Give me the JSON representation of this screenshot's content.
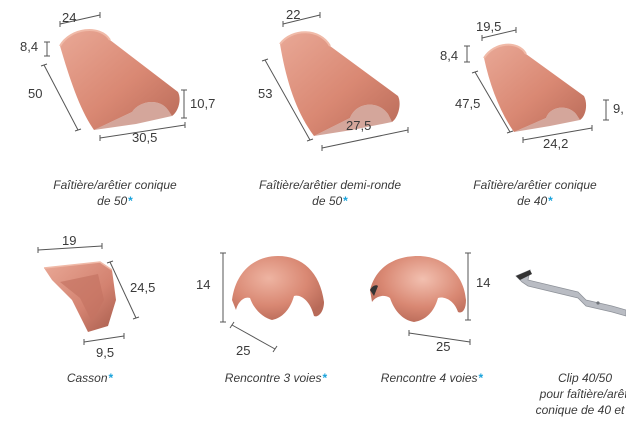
{
  "products": [
    {
      "caption_line1": "Faîtière/arêtier conique",
      "caption_line2": "de 50",
      "asterisk": "*",
      "dims": {
        "top": "24",
        "left_small": "8,4",
        "length": "50",
        "height": "10,7",
        "bottom": "30,5"
      }
    },
    {
      "caption_line1": "Faîtière/arêtier demi-ronde",
      "caption_line2": "de 50",
      "asterisk": "*",
      "dims": {
        "top": "22",
        "length": "53",
        "bottom": "27,5"
      }
    },
    {
      "caption_line1": "Faîtière/arêtier conique",
      "caption_line2": "de 40",
      "asterisk": "*",
      "dims": {
        "top": "19,5",
        "left_small": "8,4",
        "length": "47,5",
        "height": "9,",
        "bottom": "24,2"
      }
    },
    {
      "caption_line1": "Casson",
      "asterisk": "*",
      "dims": {
        "top": "19",
        "right": "24,5",
        "bottom": "9,5"
      }
    },
    {
      "caption_line1": "Rencontre 3 voies",
      "asterisk": "*",
      "dims": {
        "height": "14",
        "diameter": "25"
      }
    },
    {
      "caption_line1": "Rencontre 4 voies",
      "asterisk": "*",
      "dims": {
        "height": "14",
        "diameter": "25"
      }
    },
    {
      "caption_line1": "Clip 40/50",
      "caption_line2": "pour faîtière/arêti",
      "caption_line3": "conique de 40 et 5"
    }
  ],
  "colors": {
    "tile": "#d98873",
    "tile_dark": "#b86a58",
    "tile_light": "#eaa996",
    "asterisk": "#1aa3dc",
    "clip": "#b9bcc3"
  }
}
